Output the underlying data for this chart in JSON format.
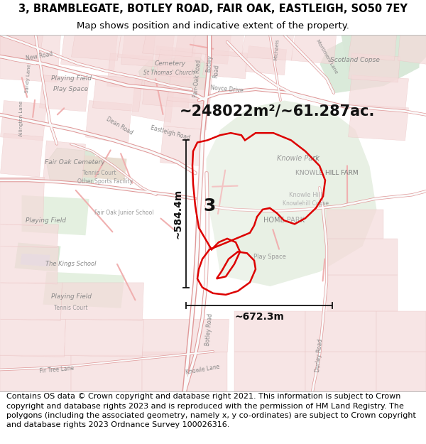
{
  "title_line1": "3, BRAMBLEGATE, BOTLEY ROAD, FAIR OAK, EASTLEIGH, SO50 7EY",
  "title_line2": "Map shows position and indicative extent of the property.",
  "area_label": "~248022m²/~61.287ac.",
  "parcel_label": "3",
  "dim1_label": "~584.4m",
  "dim2_label": "~672.3m",
  "footer_text": "Contains OS data © Crown copyright and database right 2021. This information is subject to Crown copyright and database rights 2023 and is reproduced with the permission of HM Land Registry. The polygons (including the associated geometry, namely x, y co-ordinates) are subject to Crown copyright and database rights 2023 Ordnance Survey 100026316.",
  "title_fontsize": 10.5,
  "subtitle_fontsize": 9.5,
  "footer_fontsize": 8.0,
  "boundary_color": "#dd0000",
  "boundary_linewidth": 1.8,
  "dim_line_color": "#111111",
  "parcel_label_fontsize": 18,
  "parcel_label_color": "#111111",
  "area_label_fontsize": 15,
  "area_label_color": "#111111",
  "dim_label_fontsize": 10,
  "map_bg": "#ffffff",
  "road_color_light": "#f5c8c8",
  "road_color_dark": "#e08080",
  "green_area_color": "#deeede",
  "pink_urban_color": "#f5d8d8"
}
